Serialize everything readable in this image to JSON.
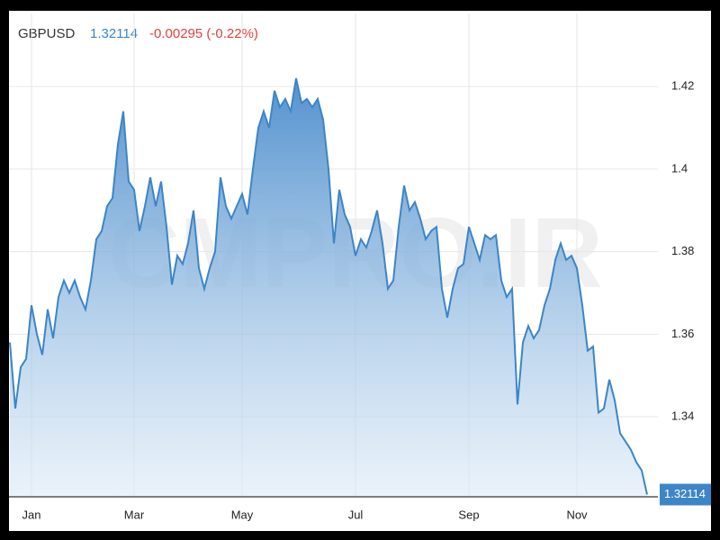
{
  "header": {
    "symbol": "GBPUSD",
    "price": "1.32114",
    "change": "-0.00295 (-0.22%)"
  },
  "chart_data": {
    "type": "area",
    "watermark": "CMPRO.IR",
    "categories": [
      null,
      null,
      null,
      null,
      "Jan",
      null,
      null,
      null,
      null,
      null,
      null,
      null,
      null,
      null,
      null,
      null,
      null,
      null,
      null,
      null,
      null,
      null,
      null,
      "Mar",
      null,
      null,
      null,
      null,
      null,
      null,
      null,
      null,
      null,
      null,
      null,
      null,
      null,
      null,
      null,
      null,
      null,
      null,
      null,
      "May",
      null,
      null,
      null,
      null,
      null,
      null,
      null,
      null,
      null,
      null,
      null,
      null,
      null,
      null,
      null,
      null,
      null,
      null,
      null,
      null,
      "Jul",
      null,
      null,
      null,
      null,
      null,
      null,
      null,
      null,
      null,
      null,
      null,
      null,
      null,
      null,
      null,
      null,
      null,
      null,
      null,
      null,
      "Sep",
      null,
      null,
      null,
      null,
      null,
      null,
      null,
      null,
      null,
      null,
      null,
      null,
      null,
      null,
      null,
      null,
      null,
      null,
      null,
      "Nov",
      null,
      null,
      null,
      null,
      null,
      null,
      null,
      null,
      null,
      null,
      null,
      null,
      null
    ],
    "values": [
      1.358,
      1.342,
      1.352,
      1.354,
      1.367,
      1.36,
      1.355,
      1.366,
      1.359,
      1.369,
      1.373,
      1.37,
      1.373,
      1.369,
      1.366,
      1.373,
      1.383,
      1.385,
      1.391,
      1.393,
      1.406,
      1.414,
      1.397,
      1.395,
      1.385,
      1.391,
      1.398,
      1.391,
      1.397,
      1.386,
      1.372,
      1.379,
      1.377,
      1.382,
      1.39,
      1.376,
      1.371,
      1.376,
      1.38,
      1.398,
      1.391,
      1.388,
      1.391,
      1.394,
      1.389,
      1.4,
      1.41,
      1.414,
      1.41,
      1.419,
      1.415,
      1.417,
      1.414,
      1.422,
      1.416,
      1.417,
      1.415,
      1.417,
      1.412,
      1.4,
      1.382,
      1.395,
      1.389,
      1.386,
      1.379,
      1.383,
      1.381,
      1.385,
      1.39,
      1.382,
      1.371,
      1.373,
      1.386,
      1.396,
      1.39,
      1.392,
      1.388,
      1.383,
      1.385,
      1.386,
      1.371,
      1.364,
      1.371,
      1.376,
      1.377,
      1.386,
      1.382,
      1.378,
      1.384,
      1.383,
      1.384,
      1.373,
      1.369,
      1.371,
      1.343,
      1.358,
      1.362,
      1.359,
      1.361,
      1.367,
      1.371,
      1.378,
      1.382,
      1.378,
      1.379,
      1.376,
      1.367,
      1.356,
      1.357,
      1.341,
      1.342,
      1.349,
      1.344,
      1.336,
      1.334,
      1.332,
      1.329,
      1.327,
      1.32114
    ],
    "color": "#3d85c6",
    "ylim": [
      1.3206,
      1.4377
    ],
    "yticks": [
      1.34,
      1.36,
      1.38,
      {
        "value": 1.4,
        "label": "1.4"
      },
      1.42
    ],
    "grid": true
  }
}
